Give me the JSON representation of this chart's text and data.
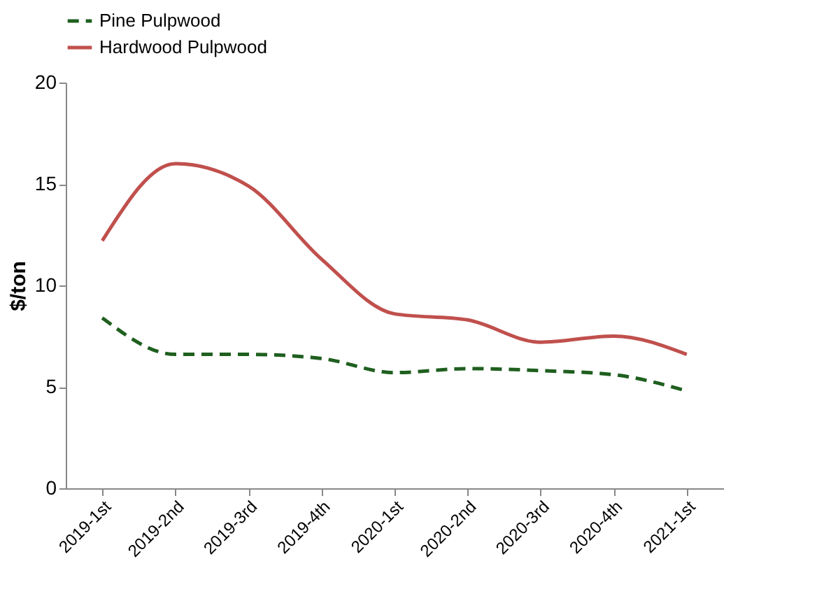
{
  "chart_data": {
    "type": "line",
    "ylabel": "$/ton",
    "categories": [
      "2019-1st",
      "2019-2nd",
      "2019-3rd",
      "2019-4th",
      "2020-1st",
      "2020-2nd",
      "2020-3rd",
      "2020-4th",
      "2021-1st"
    ],
    "series": [
      {
        "name": "Pine Pulpwood",
        "color": "#1f5f1f",
        "line_style": "dashed",
        "values": [
          8.4,
          6.6,
          6.6,
          6.4,
          5.7,
          5.9,
          5.8,
          5.6,
          4.8
        ]
      },
      {
        "name": "Hardwood Pulpwood",
        "color": "#c0504d",
        "line_style": "solid",
        "values": [
          12.2,
          16.0,
          14.9,
          11.3,
          8.6,
          8.3,
          7.2,
          7.5,
          6.6
        ]
      }
    ],
    "ylim": [
      0,
      20
    ],
    "yticks": [
      0,
      5,
      10,
      15,
      20
    ],
    "grid": false,
    "legend": "top",
    "marker": "none"
  }
}
